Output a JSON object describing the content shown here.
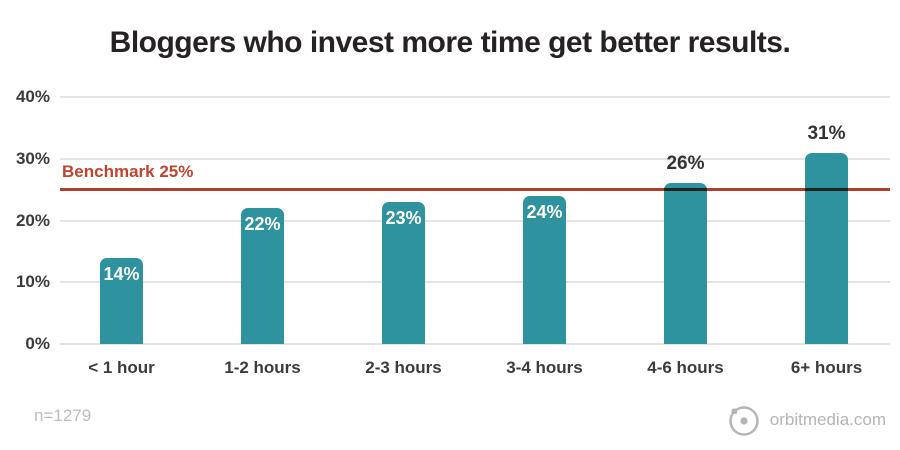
{
  "title": "Bloggers who invest more time get better results.",
  "benchmark": {
    "label": "Benchmark 25%",
    "value": 25
  },
  "footer": {
    "sample_size": "n=1279",
    "brand": "orbitmedia.com"
  },
  "colors": {
    "bar": "#2e929f",
    "benchmark_line": "#b03f2d",
    "benchmark_text": "#c0442f",
    "title_text": "#262223",
    "axis_text": "#3b3b3b",
    "gridline": "#e4e4e4",
    "muted_gray": "#b5b5b5",
    "bar_label_inside": "#ffffff",
    "bar_label_above": "#333333"
  },
  "chart_data": {
    "type": "bar",
    "title": "Bloggers who invest more time get better results.",
    "categories": [
      "< 1 hour",
      "1-2 hours",
      "2-3 hours",
      "3-4 hours",
      "4-6 hours",
      "6+ hours"
    ],
    "values": [
      14,
      22,
      23,
      24,
      26,
      31
    ],
    "value_labels": [
      "14%",
      "22%",
      "23%",
      "24%",
      "26%",
      "31%"
    ],
    "xlabel": "",
    "ylabel": "",
    "ylim": [
      0,
      40
    ],
    "y_ticks": [
      "40%",
      "30%",
      "20%",
      "10%",
      "0%"
    ],
    "benchmark_value": 25,
    "benchmark_label": "Benchmark 25%",
    "grid": true,
    "legend": false,
    "annotations": [
      "n=1279",
      "orbitmedia.com"
    ]
  }
}
